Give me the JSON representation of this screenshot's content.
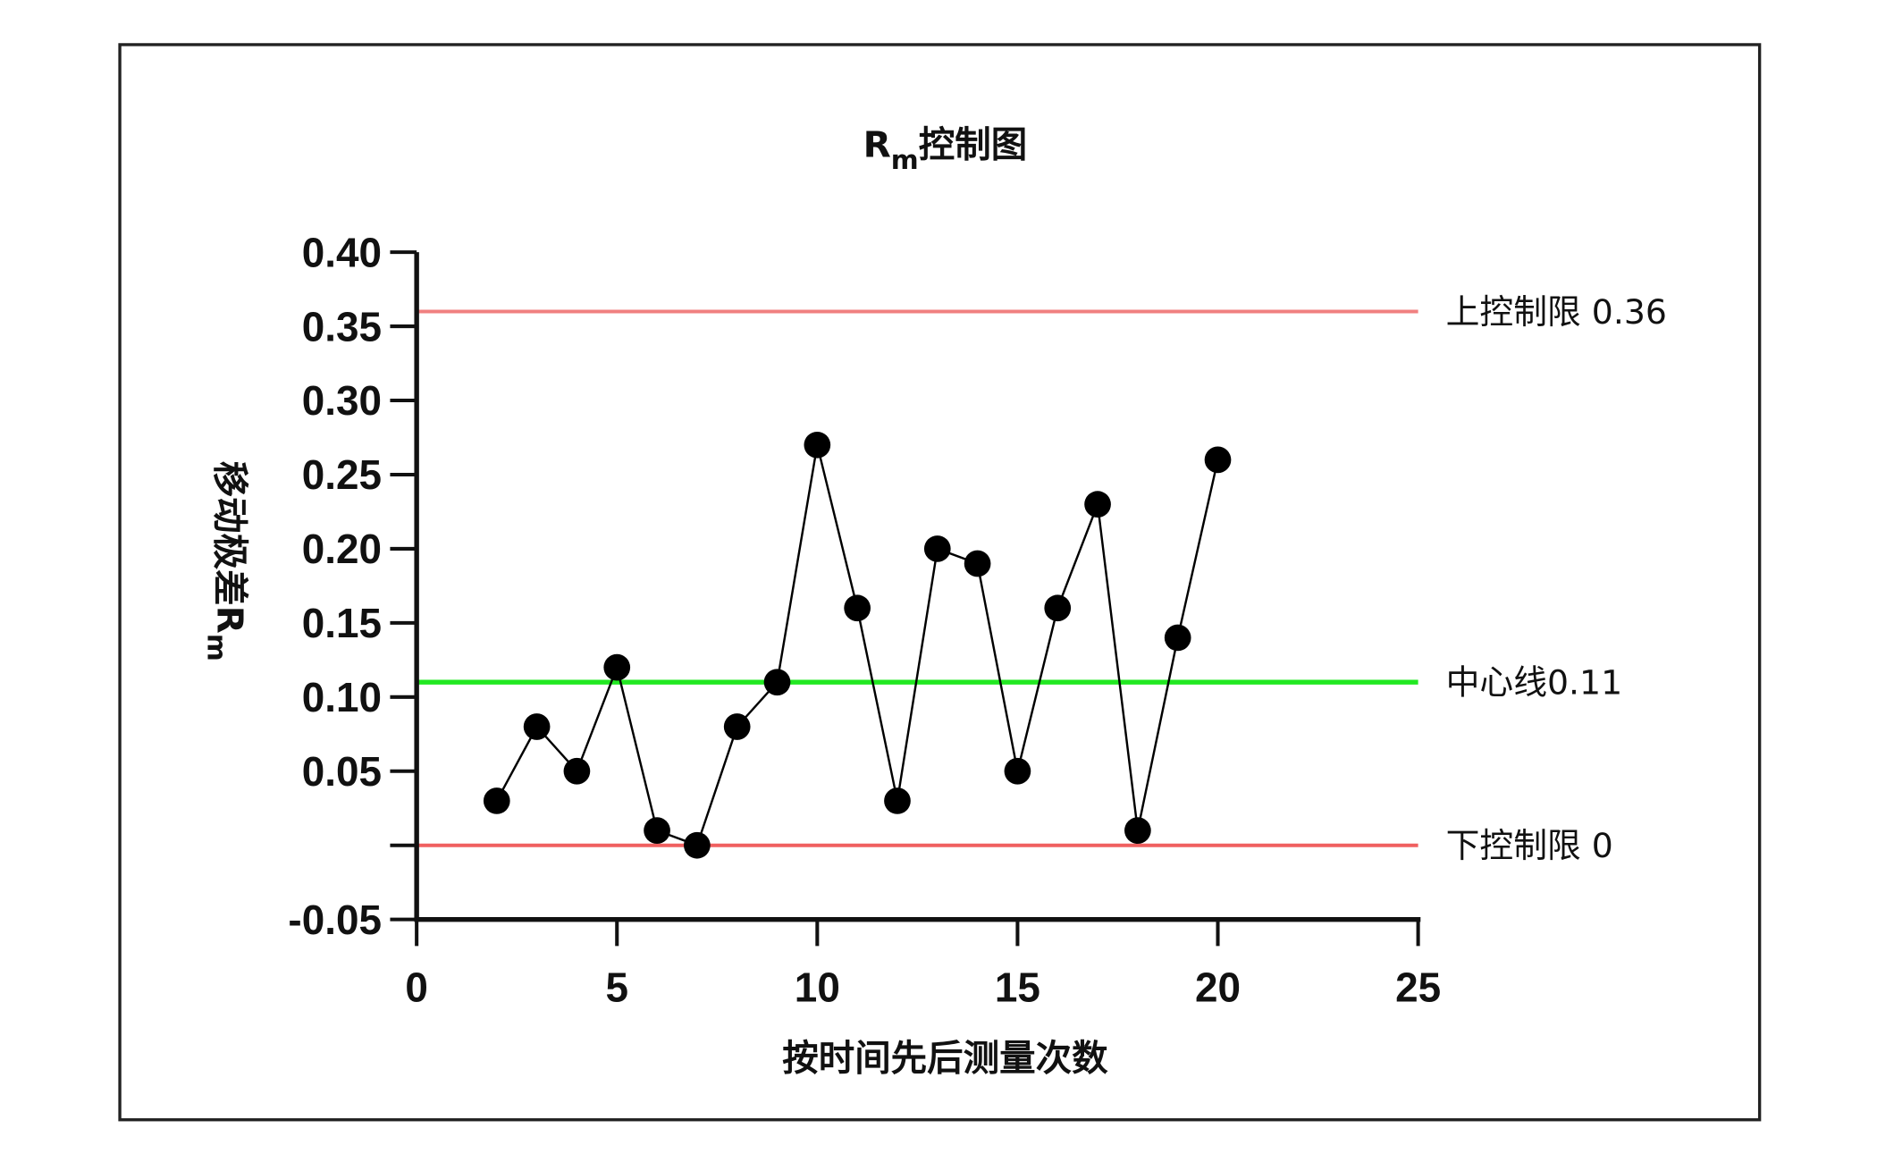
{
  "chart_data": {
    "type": "line",
    "title": "Rm控制图",
    "title_main": "R",
    "title_sub": "m",
    "title_rest": "控制图",
    "xlabel": "按时间先后测量次数",
    "ylabel": "移动极差Rm",
    "ylabel_main": "移动极差R",
    "ylabel_sub": "m",
    "xlim": [
      0,
      25
    ],
    "ylim": [
      -0.05,
      0.4
    ],
    "x_ticks": [
      "0",
      "5",
      "10",
      "15",
      "20",
      "25"
    ],
    "y_ticks": [
      "-0.05",
      "0.05",
      "0.10",
      "0.15",
      "0.20",
      "0.25",
      "0.30",
      "0.35",
      "0.40"
    ],
    "grid": false,
    "x": [
      2,
      3,
      4,
      5,
      6,
      7,
      8,
      9,
      10,
      11,
      12,
      13,
      14,
      15,
      16,
      17,
      18,
      19,
      20
    ],
    "y": [
      0.03,
      0.08,
      0.05,
      0.12,
      0.01,
      0.0,
      0.08,
      0.11,
      0.27,
      0.16,
      0.03,
      0.2,
      0.19,
      0.05,
      0.16,
      0.23,
      0.01,
      0.14,
      0.26
    ],
    "reference_lines": [
      {
        "label": "上控制限 0.36",
        "value": 0.36,
        "color": "#f08080"
      },
      {
        "label": "中心线0.11",
        "value": 0.11,
        "color": "#22e822"
      },
      {
        "label": "下控制限 0",
        "value": 0,
        "color": "#f06060"
      }
    ],
    "series_color": "#000000"
  }
}
